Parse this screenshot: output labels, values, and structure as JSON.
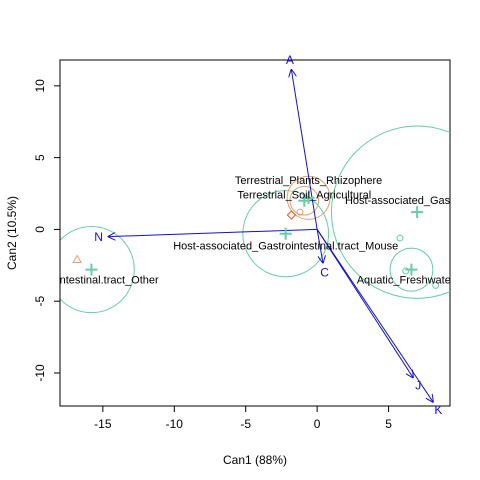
{
  "chart_data": {
    "type": "scatter",
    "title": "",
    "xlabel": "Can1 (88%)",
    "ylabel": "Can2 (10.5%)",
    "xlim": [
      -18.0,
      9.3
    ],
    "ylim": [
      -12.3,
      11.8
    ],
    "xticks": [
      -15,
      -10,
      -5,
      0,
      5
    ],
    "yticks": [
      -10,
      -5,
      0,
      5,
      10
    ],
    "grid": false,
    "group_centroids": [
      {
        "label": "Gastrointestinal.tract_Other",
        "x": -15.8,
        "y": -2.8,
        "radius": 3.0
      },
      {
        "label": "Host-associated_Gastrointestinal.tract_Mouse",
        "x": -2.2,
        "y": -0.3,
        "radius": 3.0
      },
      {
        "label": "Terrestrial_Plants_Rhizophere",
        "x": -0.6,
        "y": 2.2,
        "radius": 1.5
      },
      {
        "label": "Terrestrial_Soil_Agricultural",
        "x": -0.9,
        "y": 2.0,
        "radius": 1.0
      },
      {
        "label": "Host-associated_Gastrointest",
        "x": 7.0,
        "y": 1.2,
        "radius": 6.0
      },
      {
        "label": "Aquatic_Freshwaters_",
        "x": 6.6,
        "y": -2.8,
        "radius": 1.5
      }
    ],
    "points": [
      {
        "shape": "triangle",
        "color": "#e0a070",
        "x": -16.8,
        "y": -2.1
      },
      {
        "shape": "diamond",
        "color": "#e05020",
        "x": -1.8,
        "y": 1.0
      },
      {
        "shape": "circle",
        "color": "#e0a070",
        "x": -1.2,
        "y": 1.2
      },
      {
        "shape": "circle",
        "color": "#66ccaa",
        "x": 5.8,
        "y": -0.6
      },
      {
        "shape": "circle",
        "color": "#66ccaa",
        "x": 6.2,
        "y": -2.9
      },
      {
        "shape": "circle",
        "color": "#66ccaa",
        "x": 8.3,
        "y": -3.9
      }
    ],
    "vectors": [
      {
        "label": "A",
        "x": -1.8,
        "y": 11.1
      },
      {
        "label": "N",
        "x": -14.6,
        "y": -0.5
      },
      {
        "label": "C",
        "x": 0.4,
        "y": -2.3
      },
      {
        "label": "J",
        "x": 6.7,
        "y": -10.3
      },
      {
        "label": "K",
        "x": 8.1,
        "y": -12.0
      }
    ],
    "colors": {
      "ellipse": "#66ccaa",
      "centroid": "#66ccaa",
      "vector": "#1010d0",
      "ellipse_inner": "#e0a070"
    }
  }
}
